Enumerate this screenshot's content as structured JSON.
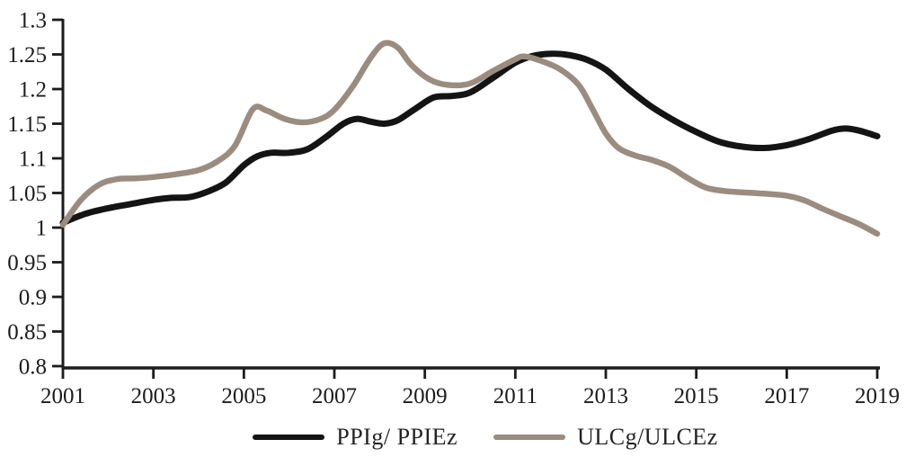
{
  "chart_data": {
    "type": "line",
    "title": "",
    "xlabel": "",
    "ylabel": "",
    "background": "#ffffff",
    "axis_color": "#1c1c1c",
    "grid": false,
    "legend_position": "bottom",
    "x_axis": {
      "min": 2001,
      "max": 2019,
      "tick_labels": [
        "2001",
        "2003",
        "2005",
        "2007",
        "2009",
        "2011",
        "2013",
        "2015",
        "2017",
        "2019"
      ],
      "tick_values": [
        2001,
        2003,
        2005,
        2007,
        2009,
        2011,
        2013,
        2015,
        2017,
        2019
      ]
    },
    "y_axis": {
      "min": 0.8,
      "max": 1.3,
      "tick_labels": [
        "1.3",
        "1.25",
        "1.2",
        "1.15",
        "1.1",
        "1.05",
        "1",
        "0.95",
        "0.9",
        "0.85",
        "0.8"
      ],
      "tick_values": [
        1.3,
        1.25,
        1.2,
        1.15,
        1.1,
        1.05,
        1.0,
        0.95,
        0.9,
        0.85,
        0.8
      ]
    },
    "series": [
      {
        "name": "PPIg/ PPIEz",
        "color": "#141414",
        "stroke_width": 7,
        "points": [
          [
            2001.0,
            1.007
          ],
          [
            2001.5,
            1.02
          ],
          [
            2002.0,
            1.028
          ],
          [
            2002.5,
            1.034
          ],
          [
            2003.0,
            1.04
          ],
          [
            2003.4,
            1.043
          ],
          [
            2003.8,
            1.044
          ],
          [
            2004.2,
            1.052
          ],
          [
            2004.6,
            1.065
          ],
          [
            2005.0,
            1.09
          ],
          [
            2005.3,
            1.103
          ],
          [
            2005.6,
            1.108
          ],
          [
            2006.0,
            1.108
          ],
          [
            2006.4,
            1.113
          ],
          [
            2006.8,
            1.13
          ],
          [
            2007.2,
            1.15
          ],
          [
            2007.5,
            1.157
          ],
          [
            2007.8,
            1.153
          ],
          [
            2008.1,
            1.15
          ],
          [
            2008.4,
            1.155
          ],
          [
            2008.8,
            1.172
          ],
          [
            2009.2,
            1.188
          ],
          [
            2009.6,
            1.19
          ],
          [
            2010.0,
            1.195
          ],
          [
            2010.5,
            1.216
          ],
          [
            2011.0,
            1.238
          ],
          [
            2011.4,
            1.248
          ],
          [
            2011.8,
            1.251
          ],
          [
            2012.2,
            1.249
          ],
          [
            2012.6,
            1.242
          ],
          [
            2013.0,
            1.228
          ],
          [
            2013.5,
            1.2
          ],
          [
            2014.0,
            1.175
          ],
          [
            2014.5,
            1.155
          ],
          [
            2015.0,
            1.138
          ],
          [
            2015.5,
            1.124
          ],
          [
            2016.0,
            1.117
          ],
          [
            2016.5,
            1.115
          ],
          [
            2017.0,
            1.119
          ],
          [
            2017.5,
            1.128
          ],
          [
            2018.0,
            1.14
          ],
          [
            2018.3,
            1.143
          ],
          [
            2018.6,
            1.14
          ],
          [
            2019.0,
            1.132
          ]
        ]
      },
      {
        "name": "ULCg/ULCEz",
        "color": "#9b8c80",
        "stroke_width": 6.5,
        "points": [
          [
            2001.0,
            1.004
          ],
          [
            2001.4,
            1.04
          ],
          [
            2001.8,
            1.062
          ],
          [
            2002.2,
            1.07
          ],
          [
            2002.6,
            1.071
          ],
          [
            2003.0,
            1.073
          ],
          [
            2003.5,
            1.077
          ],
          [
            2004.0,
            1.083
          ],
          [
            2004.4,
            1.095
          ],
          [
            2004.8,
            1.118
          ],
          [
            2005.2,
            1.171
          ],
          [
            2005.5,
            1.169
          ],
          [
            2005.9,
            1.157
          ],
          [
            2006.3,
            1.152
          ],
          [
            2006.7,
            1.157
          ],
          [
            2007.0,
            1.17
          ],
          [
            2007.4,
            1.203
          ],
          [
            2007.8,
            1.245
          ],
          [
            2008.1,
            1.266
          ],
          [
            2008.4,
            1.26
          ],
          [
            2008.7,
            1.235
          ],
          [
            2009.1,
            1.214
          ],
          [
            2009.5,
            1.206
          ],
          [
            2010.0,
            1.208
          ],
          [
            2010.5,
            1.226
          ],
          [
            2011.0,
            1.243
          ],
          [
            2011.2,
            1.247
          ],
          [
            2011.6,
            1.24
          ],
          [
            2012.0,
            1.228
          ],
          [
            2012.4,
            1.206
          ],
          [
            2012.7,
            1.172
          ],
          [
            2013.0,
            1.136
          ],
          [
            2013.3,
            1.114
          ],
          [
            2013.7,
            1.103
          ],
          [
            2014.0,
            1.098
          ],
          [
            2014.4,
            1.088
          ],
          [
            2014.8,
            1.072
          ],
          [
            2015.2,
            1.058
          ],
          [
            2015.6,
            1.053
          ],
          [
            2016.0,
            1.051
          ],
          [
            2016.5,
            1.049
          ],
          [
            2017.0,
            1.046
          ],
          [
            2017.4,
            1.039
          ],
          [
            2017.8,
            1.027
          ],
          [
            2018.2,
            1.016
          ],
          [
            2018.6,
            1.005
          ],
          [
            2019.0,
            0.991
          ]
        ]
      }
    ]
  }
}
